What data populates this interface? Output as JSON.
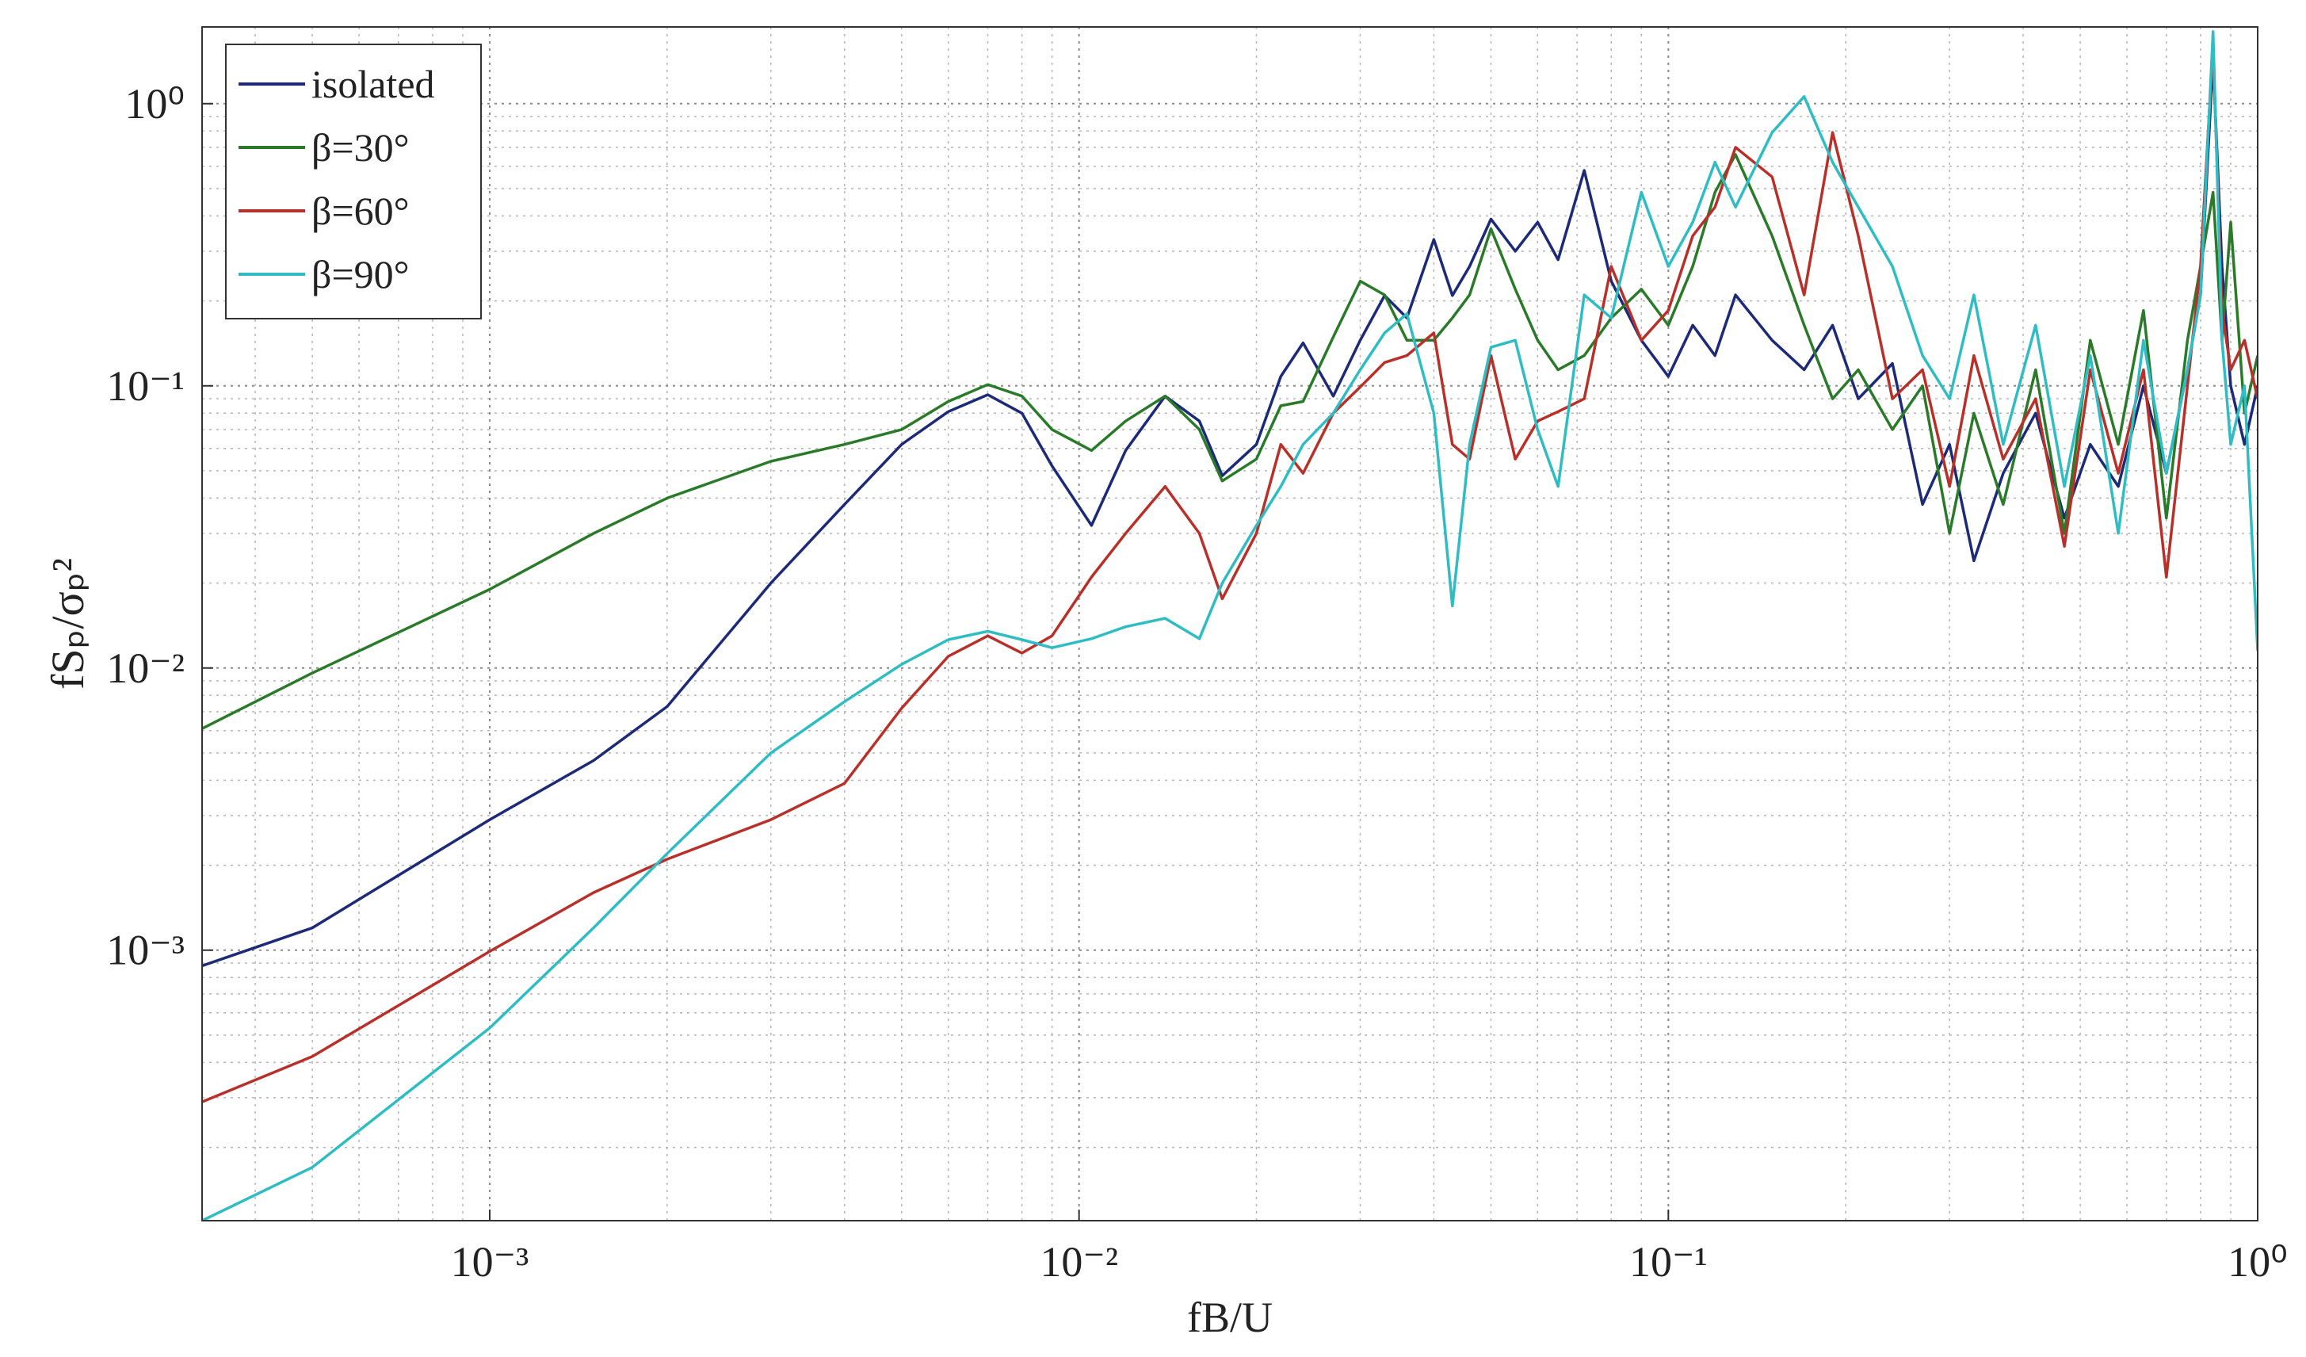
{
  "chart_data": {
    "type": "line",
    "xlabel": "fB/U",
    "ylabel": "fSₚ/σₚ²",
    "log_x": true,
    "log_y": true,
    "grid": true,
    "minor_grid": true,
    "legend": "top-left",
    "xlim": [
      0.000325,
      1
    ],
    "ylim": [
      0.00011,
      1.87
    ],
    "xticks": [
      {
        "value": 0.001,
        "label": "10⁻³"
      },
      {
        "value": 0.01,
        "label": "10⁻²"
      },
      {
        "value": 0.1,
        "label": "10⁻¹"
      },
      {
        "value": 1,
        "label": "10⁰"
      }
    ],
    "yticks": [
      {
        "value": 0.001,
        "label": "10⁻³"
      },
      {
        "value": 0.01,
        "label": "10⁻²"
      },
      {
        "value": 0.1,
        "label": "10⁻¹"
      },
      {
        "value": 1,
        "label": "10⁰"
      }
    ],
    "x": [
      0.000325,
      0.0005,
      0.001,
      0.0015,
      0.002,
      0.003,
      0.004,
      0.005,
      0.006,
      0.007,
      0.008,
      0.009,
      0.0105,
      0.012,
      0.014,
      0.016,
      0.0175,
      0.02,
      0.022,
      0.024,
      0.027,
      0.03,
      0.033,
      0.036,
      0.04,
      0.043,
      0.046,
      0.05,
      0.055,
      0.06,
      0.065,
      0.072,
      0.08,
      0.09,
      0.1,
      0.11,
      0.12,
      0.13,
      0.15,
      0.17,
      0.19,
      0.21,
      0.24,
      0.27,
      0.3,
      0.33,
      0.37,
      0.42,
      0.47,
      0.52,
      0.58,
      0.64,
      0.7,
      0.76,
      0.8,
      0.84,
      0.87,
      0.9,
      0.95,
      1.0
    ],
    "series": [
      {
        "name": "isolated",
        "color": "#1c2a78",
        "values": [
          0.00088,
          0.0012,
          0.0029,
          0.0047,
          0.0073,
          0.02,
          0.038,
          0.062,
          0.081,
          0.093,
          0.08,
          0.052,
          0.032,
          0.059,
          0.092,
          0.075,
          0.048,
          0.062,
          0.108,
          0.142,
          0.092,
          0.145,
          0.209,
          0.174,
          0.33,
          0.209,
          0.265,
          0.39,
          0.3,
          0.38,
          0.28,
          0.58,
          0.235,
          0.145,
          0.108,
          0.164,
          0.128,
          0.21,
          0.145,
          0.114,
          0.164,
          0.09,
          0.12,
          0.038,
          0.062,
          0.024,
          0.049,
          0.08,
          0.034,
          0.062,
          0.044,
          0.1,
          0.049,
          0.114,
          0.21,
          1.44,
          0.265,
          0.1,
          0.062,
          0.1
        ]
      },
      {
        "name": "β=30°",
        "color": "#2a7a2a",
        "values": [
          0.0061,
          0.0096,
          0.019,
          0.03,
          0.04,
          0.054,
          0.062,
          0.07,
          0.088,
          0.101,
          0.092,
          0.07,
          0.059,
          0.075,
          0.092,
          0.07,
          0.046,
          0.055,
          0.085,
          0.088,
          0.149,
          0.235,
          0.21,
          0.145,
          0.145,
          0.174,
          0.21,
          0.36,
          0.22,
          0.145,
          0.114,
          0.128,
          0.174,
          0.22,
          0.164,
          0.265,
          0.485,
          0.66,
          0.34,
          0.164,
          0.09,
          0.114,
          0.07,
          0.1,
          0.03,
          0.08,
          0.038,
          0.114,
          0.03,
          0.145,
          0.062,
          0.185,
          0.034,
          0.145,
          0.265,
          0.485,
          0.145,
          0.38,
          0.08,
          0.128
        ]
      },
      {
        "name": "β=60°",
        "color": "#b8302a",
        "values": [
          0.00029,
          0.00042,
          0.00099,
          0.0016,
          0.0021,
          0.0029,
          0.0039,
          0.0072,
          0.011,
          0.013,
          0.0113,
          0.013,
          0.021,
          0.03,
          0.044,
          0.03,
          0.0176,
          0.03,
          0.062,
          0.049,
          0.08,
          0.099,
          0.121,
          0.128,
          0.154,
          0.062,
          0.055,
          0.128,
          0.055,
          0.075,
          0.081,
          0.09,
          0.265,
          0.145,
          0.185,
          0.34,
          0.43,
          0.7,
          0.55,
          0.21,
          0.79,
          0.34,
          0.09,
          0.114,
          0.044,
          0.128,
          0.055,
          0.09,
          0.027,
          0.114,
          0.049,
          0.114,
          0.021,
          0.1,
          0.265,
          1.6,
          0.185,
          0.114,
          0.145,
          0.09
        ]
      },
      {
        "name": "β=90°",
        "color": "#2fbcc2",
        "values": [
          0.00011,
          0.00017,
          0.00053,
          0.0012,
          0.0022,
          0.005,
          0.0076,
          0.0103,
          0.0126,
          0.0135,
          0.0126,
          0.0118,
          0.0127,
          0.014,
          0.015,
          0.0127,
          0.02,
          0.032,
          0.044,
          0.062,
          0.08,
          0.114,
          0.154,
          0.18,
          0.08,
          0.0166,
          0.062,
          0.137,
          0.145,
          0.07,
          0.044,
          0.21,
          0.174,
          0.485,
          0.265,
          0.38,
          0.62,
          0.43,
          0.79,
          1.06,
          0.62,
          0.43,
          0.265,
          0.128,
          0.09,
          0.21,
          0.062,
          0.164,
          0.044,
          0.128,
          0.03,
          0.145,
          0.049,
          0.114,
          0.21,
          1.8,
          0.145,
          0.062,
          0.1,
          0.0115
        ]
      }
    ]
  }
}
